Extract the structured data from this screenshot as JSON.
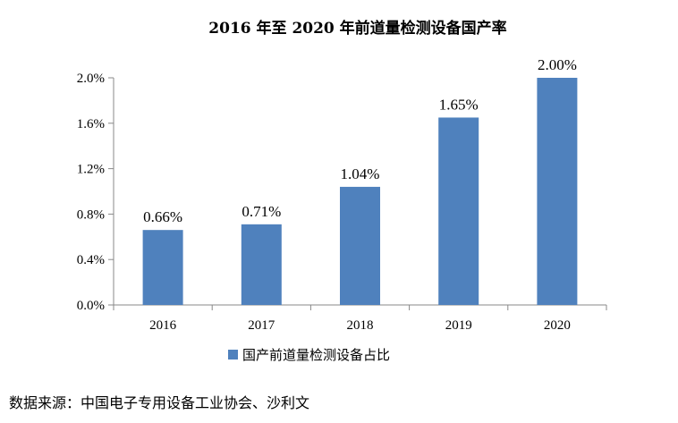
{
  "chart_data": {
    "type": "bar",
    "title": "2016 年至 2020 年前道量检测设备国产率",
    "categories": [
      "2016",
      "2017",
      "2018",
      "2019",
      "2020"
    ],
    "series": [
      {
        "name": "国产前道量检测设备占比",
        "values": [
          0.66,
          0.71,
          1.04,
          1.65,
          2.0
        ]
      }
    ],
    "data_labels": [
      "0.66%",
      "0.71%",
      "1.04%",
      "1.65%",
      "2.00%"
    ],
    "y_ticks": [
      "0.0%",
      "0.4%",
      "0.8%",
      "1.2%",
      "1.6%",
      "2.0%"
    ],
    "y_tick_values": [
      0,
      0.4,
      0.8,
      1.2,
      1.6,
      2.0
    ],
    "ylim": [
      0,
      2.0
    ],
    "xlabel": "",
    "ylabel": "",
    "grid": false,
    "legend_position": "bottom",
    "bar_color": "#4f81bd"
  },
  "source_text": "数据来源：中国电子专用设备工业协会、沙利文"
}
